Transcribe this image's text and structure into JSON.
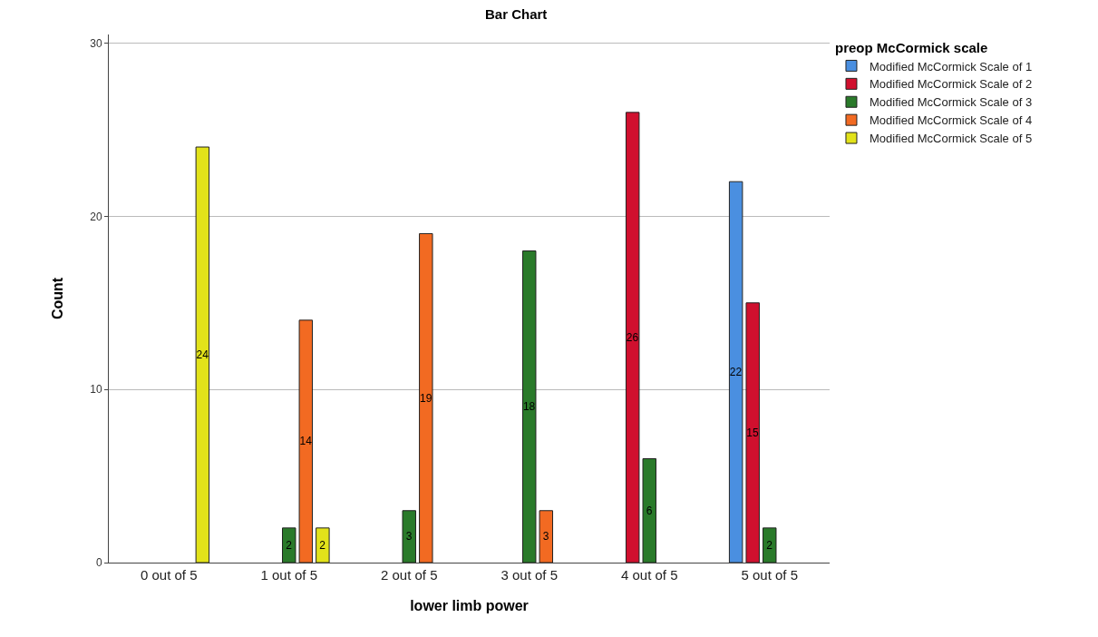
{
  "chart_data": {
    "type": "bar",
    "title": "Bar Chart",
    "xlabel": "lower limb power",
    "ylabel": "Count",
    "legend_title": "preop McCormick scale",
    "categories": [
      "0 out of 5",
      "1 out of 5",
      "2 out of 5",
      "3 out of 5",
      "4 out of 5",
      "5 out of 5"
    ],
    "series": [
      {
        "name": "Modified McCormick Scale of 1",
        "color": "#4a8fe0",
        "values": [
          null,
          null,
          null,
          null,
          null,
          22
        ]
      },
      {
        "name": "Modified McCormick Scale of 2",
        "color": "#d0102e",
        "values": [
          null,
          null,
          null,
          null,
          26,
          15
        ]
      },
      {
        "name": "Modified McCormick Scale of 3",
        "color": "#2a7a2a",
        "values": [
          null,
          2,
          3,
          18,
          6,
          2
        ]
      },
      {
        "name": "Modified McCormick Scale of 4",
        "color": "#f26a22",
        "values": [
          null,
          14,
          19,
          3,
          null,
          null
        ]
      },
      {
        "name": "Modified McCormick Scale of 5",
        "color": "#e2e21a",
        "values": [
          24,
          2,
          null,
          null,
          null,
          null
        ]
      }
    ],
    "ylim": [
      0,
      30.5
    ],
    "yticks": [
      0,
      10,
      20,
      30
    ],
    "grid": "y",
    "legend": "top right",
    "data_labels": true
  }
}
